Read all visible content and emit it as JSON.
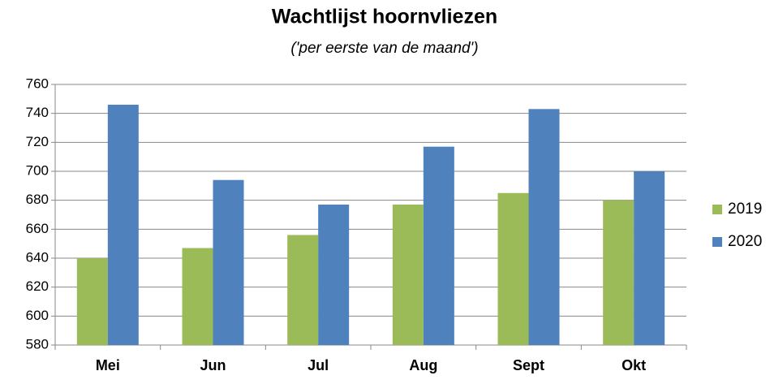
{
  "chart_data": {
    "type": "bar",
    "title": "Wachtlijst hoornvliezen",
    "subtitle": "('per eerste van de maand')",
    "categories": [
      "Mei",
      "Jun",
      "Jul",
      "Aug",
      "Sept",
      "Okt"
    ],
    "series": [
      {
        "name": "2019",
        "color": "#9bbb59",
        "values": [
          640,
          647,
          656,
          677,
          685,
          680
        ]
      },
      {
        "name": "2020",
        "color": "#4f81bd",
        "values": [
          746,
          694,
          677,
          717,
          743,
          700
        ]
      }
    ],
    "ylim": [
      580,
      760
    ],
    "yticks": [
      580,
      600,
      620,
      640,
      660,
      680,
      700,
      720,
      740,
      760
    ],
    "grid": true,
    "legend": "right"
  }
}
